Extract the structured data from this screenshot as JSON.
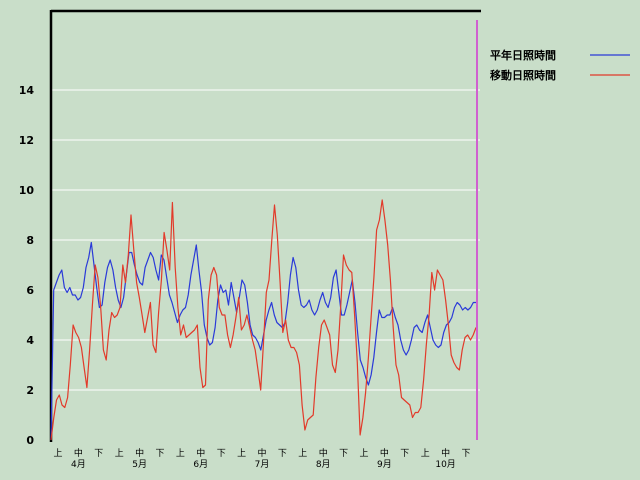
{
  "chart_data": {
    "type": "line",
    "ylim": [
      0,
      16
    ],
    "yticks": [
      0,
      2,
      4,
      6,
      8,
      10,
      12,
      14
    ],
    "decade_labels": [
      "上",
      "中",
      "下",
      "上",
      "中",
      "下",
      "上",
      "中",
      "下",
      "上",
      "中",
      "下",
      "上",
      "中",
      "下",
      "上",
      "中",
      "下",
      "上",
      "中",
      "下"
    ],
    "month_labels": [
      "4月",
      "5月",
      "6月",
      "7月",
      "8月",
      "9月",
      "10月"
    ],
    "legend_position": "top-right",
    "series": [
      {
        "name": "平年日照時間",
        "color": "#2a3ad8",
        "values": [
          0,
          6.0,
          6.3,
          6.6,
          6.8,
          6.1,
          5.9,
          6.1,
          5.8,
          5.8,
          5.6,
          5.7,
          6.1,
          6.9,
          7.3,
          7.9,
          7.0,
          6.1,
          5.3,
          5.4,
          6.3,
          6.9,
          7.2,
          6.8,
          6.1,
          5.6,
          5.3,
          5.7,
          6.6,
          7.5,
          7.5,
          7.0,
          6.6,
          6.3,
          6.2,
          6.9,
          7.2,
          7.5,
          7.3,
          6.8,
          6.4,
          7.4,
          7.2,
          6.5,
          5.8,
          5.5,
          5.1,
          4.7,
          5.0,
          5.2,
          5.3,
          5.8,
          6.6,
          7.2,
          7.8,
          6.8,
          5.9,
          4.6,
          4.1,
          3.8,
          3.9,
          4.5,
          5.6,
          6.2,
          5.9,
          6.0,
          5.4,
          6.3,
          5.7,
          5.1,
          5.7,
          6.4,
          6.2,
          5.5,
          4.6,
          4.2,
          4.1,
          3.9,
          3.6,
          4.2,
          4.8,
          5.2,
          5.5,
          5.0,
          4.7,
          4.6,
          4.5,
          4.7,
          5.5,
          6.6,
          7.3,
          6.9,
          6.0,
          5.4,
          5.3,
          5.4,
          5.6,
          5.2,
          5.0,
          5.2,
          5.6,
          5.9,
          5.5,
          5.3,
          5.7,
          6.5,
          6.8,
          5.9,
          5.0,
          5.0,
          5.4,
          5.9,
          6.4,
          5.5,
          4.3,
          3.2,
          2.9,
          2.5,
          2.2,
          2.6,
          3.3,
          4.3,
          5.2,
          4.9,
          4.9,
          5.0,
          5.0,
          5.3,
          4.9,
          4.6,
          4.0,
          3.6,
          3.4,
          3.6,
          4.0,
          4.5,
          4.6,
          4.4,
          4.3,
          4.7,
          5.0,
          4.5,
          4.0,
          3.8,
          3.7,
          3.8,
          4.3,
          4.6,
          4.7,
          4.9,
          5.3,
          5.5,
          5.4,
          5.2,
          5.3,
          5.2,
          5.3,
          5.5,
          5.5
        ],
        "note": ""
      },
      {
        "name": "移動日照時間",
        "color": "#e23a2a",
        "values": [
          0,
          0.9,
          1.6,
          1.8,
          1.4,
          1.3,
          1.7,
          3.0,
          4.6,
          4.3,
          4.1,
          3.7,
          2.9,
          2.1,
          3.6,
          5.4,
          7.0,
          6.5,
          5.3,
          3.6,
          3.2,
          4.4,
          5.1,
          4.9,
          5.0,
          5.3,
          7.0,
          6.3,
          7.4,
          9.0,
          7.6,
          6.3,
          5.7,
          5.0,
          4.3,
          4.9,
          5.5,
          3.8,
          3.5,
          5.1,
          6.4,
          8.3,
          7.6,
          6.8,
          9.5,
          6.9,
          5.3,
          4.2,
          4.6,
          4.1,
          4.2,
          4.3,
          4.4,
          4.6,
          2.9,
          2.1,
          2.2,
          5.6,
          6.6,
          6.9,
          6.6,
          5.3,
          5.0,
          5.0,
          4.2,
          3.7,
          4.2,
          4.9,
          5.7,
          4.4,
          4.6,
          5.0,
          4.5,
          4.0,
          3.6,
          2.8,
          2.0,
          3.9,
          5.9,
          6.4,
          8.0,
          9.4,
          8.2,
          6.3,
          4.3,
          4.8,
          4.0,
          3.7,
          3.7,
          3.5,
          3.0,
          1.4,
          0.4,
          0.8,
          0.9,
          1.0,
          2.5,
          3.7,
          4.6,
          4.8,
          4.5,
          4.2,
          3.0,
          2.7,
          3.6,
          5.4,
          7.4,
          7.0,
          6.8,
          6.7,
          5.0,
          3.1,
          0.2,
          0.9,
          1.9,
          3.3,
          4.9,
          6.5,
          8.4,
          8.8,
          9.6,
          8.8,
          7.8,
          6.4,
          4.5,
          3.0,
          2.6,
          1.7,
          1.6,
          1.5,
          1.4,
          0.9,
          1.1,
          1.1,
          1.3,
          2.4,
          3.8,
          5.0,
          6.7,
          6.0,
          6.8,
          6.6,
          6.4,
          5.6,
          4.6,
          3.4,
          3.1,
          2.9,
          2.8,
          3.6,
          4.1,
          4.2,
          4.0,
          4.2,
          4.5
        ],
        "note": ""
      }
    ],
    "marker_line_color": "#d060d0"
  }
}
